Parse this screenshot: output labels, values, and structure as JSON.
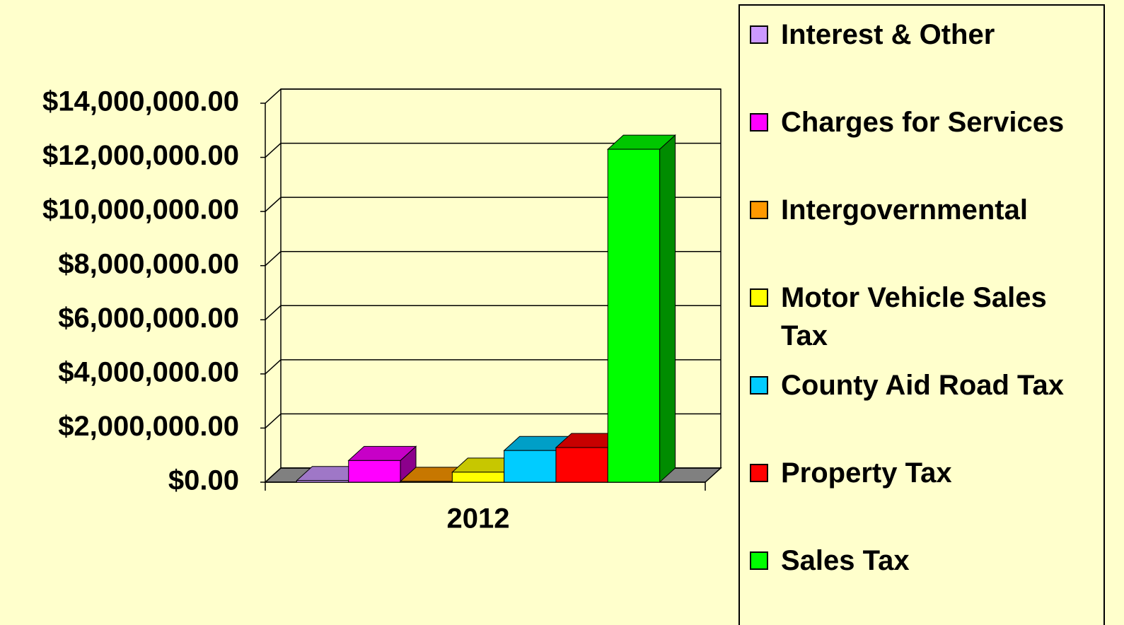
{
  "chart_data": {
    "type": "bar",
    "categories": [
      "2012"
    ],
    "series": [
      {
        "name": "Interest & Other",
        "color": "#cc99ff",
        "values": [
          60000
        ]
      },
      {
        "name": "Charges for Services",
        "color": "#ff00ff",
        "values": [
          800000
        ]
      },
      {
        "name": "Intergovernmental",
        "color": "#ff9900",
        "values": [
          30000
        ]
      },
      {
        "name": "Motor Vehicle Sales Tax",
        "color": "#ffff00",
        "values": [
          370000
        ]
      },
      {
        "name": "County Aid Road Tax",
        "color": "#00ccff",
        "values": [
          1170000
        ]
      },
      {
        "name": "Property Tax",
        "color": "#ff0000",
        "values": [
          1280000
        ]
      },
      {
        "name": "Sales Tax",
        "color": "#00ff00",
        "values": [
          12300000
        ]
      }
    ],
    "ylim": [
      0,
      14000000
    ],
    "yticks": [
      {
        "value": 0,
        "label": "$0.00"
      },
      {
        "value": 2000000,
        "label": "$2,000,000.00"
      },
      {
        "value": 4000000,
        "label": "$4,000,000.00"
      },
      {
        "value": 6000000,
        "label": "$6,000,000.00"
      },
      {
        "value": 8000000,
        "label": "$8,000,000.00"
      },
      {
        "value": 10000000,
        "label": "$10,000,000.00"
      },
      {
        "value": 12000000,
        "label": "$12,000,000.00"
      },
      {
        "value": 14000000,
        "label": "$14,000,000.00"
      }
    ],
    "grid": true,
    "legend": "right"
  }
}
